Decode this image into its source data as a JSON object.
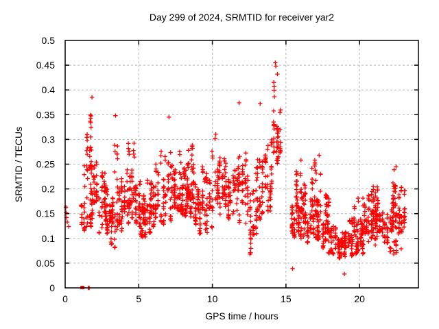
{
  "chart_data": {
    "type": "scatter",
    "title": "Day 299 of 2024, SRMTID for receiver yar2",
    "xlabel": "GPS time / hours",
    "ylabel": "SRMTID / TECUs",
    "xlim": [
      0,
      24
    ],
    "ylim": [
      0,
      0.5
    ],
    "xticks": [
      0,
      5,
      10,
      15,
      20
    ],
    "xtick_labels": [
      "0",
      "5",
      "10",
      "15",
      "20"
    ],
    "yticks": [
      0,
      0.05,
      0.1,
      0.15,
      0.2,
      0.25,
      0.3,
      0.35,
      0.4,
      0.45,
      0.5
    ],
    "ytick_labels": [
      "0",
      "0.05",
      "0.1",
      "0.15",
      "0.2",
      "0.25",
      "0.3",
      "0.35",
      "0.4",
      "0.45",
      "0.5"
    ],
    "grid": true,
    "legend": "none",
    "marker": {
      "shape": "plus",
      "size": 7,
      "color": "#ff0000"
    },
    "colors": {
      "marker": "#ff0000",
      "grid": "#b4b4b4",
      "frame": "#000000",
      "background": "#ffffff",
      "text": "#000000"
    },
    "envelope": [
      [
        1.1,
        0.1,
        0.2
      ],
      [
        1.45,
        0.11,
        0.3
      ],
      [
        1.8,
        0.12,
        0.385
      ],
      [
        2.0,
        0.12,
        0.34
      ],
      [
        2.3,
        0.11,
        0.3
      ],
      [
        2.7,
        0.1,
        0.26
      ],
      [
        3.0,
        0.085,
        0.23
      ],
      [
        3.4,
        0.075,
        0.35
      ],
      [
        3.7,
        0.09,
        0.3
      ],
      [
        4.0,
        0.11,
        0.27
      ],
      [
        4.4,
        0.12,
        0.3
      ],
      [
        4.8,
        0.13,
        0.3
      ],
      [
        5.15,
        0.1,
        0.21
      ],
      [
        5.5,
        0.09,
        0.2
      ],
      [
        5.9,
        0.1,
        0.3
      ],
      [
        6.3,
        0.11,
        0.28
      ],
      [
        6.7,
        0.12,
        0.3
      ],
      [
        7.0,
        0.13,
        0.345
      ],
      [
        7.4,
        0.14,
        0.31
      ],
      [
        7.8,
        0.15,
        0.29
      ],
      [
        8.2,
        0.14,
        0.29
      ],
      [
        8.6,
        0.13,
        0.3
      ],
      [
        9.0,
        0.11,
        0.28
      ],
      [
        9.4,
        0.09,
        0.26
      ],
      [
        9.8,
        0.1,
        0.28
      ],
      [
        10.2,
        0.13,
        0.32
      ],
      [
        10.6,
        0.14,
        0.3
      ],
      [
        11.0,
        0.13,
        0.28
      ],
      [
        11.4,
        0.12,
        0.3
      ],
      [
        11.8,
        0.13,
        0.375
      ],
      [
        12.0,
        0.13,
        0.35
      ],
      [
        12.3,
        0.1,
        0.3
      ],
      [
        12.6,
        0.065,
        0.28
      ],
      [
        12.9,
        0.1,
        0.3
      ],
      [
        13.2,
        0.13,
        0.375
      ],
      [
        13.5,
        0.14,
        0.33
      ],
      [
        13.9,
        0.15,
        0.3
      ],
      [
        14.1,
        0.17,
        0.42
      ],
      [
        14.3,
        0.18,
        0.455
      ],
      [
        14.5,
        0.2,
        0.43
      ],
      [
        14.6,
        0.21,
        0.4
      ],
      [
        14.72,
        0.25,
        0.36
      ],
      [
        15.42,
        0.1,
        0.21
      ],
      [
        15.7,
        0.1,
        0.235
      ],
      [
        16.0,
        0.1,
        0.25
      ],
      [
        16.3,
        0.09,
        0.22
      ],
      [
        16.6,
        0.09,
        0.235
      ],
      [
        16.9,
        0.1,
        0.26
      ],
      [
        17.3,
        0.09,
        0.27
      ],
      [
        17.6,
        0.07,
        0.2
      ],
      [
        18.0,
        0.07,
        0.175
      ],
      [
        18.4,
        0.062,
        0.16
      ],
      [
        18.8,
        0.055,
        0.15
      ],
      [
        19.2,
        0.06,
        0.16
      ],
      [
        19.6,
        0.065,
        0.175
      ],
      [
        20.0,
        0.07,
        0.185
      ],
      [
        20.35,
        0.065,
        0.18
      ],
      [
        20.7,
        0.07,
        0.2
      ],
      [
        21.0,
        0.08,
        0.21
      ],
      [
        21.4,
        0.09,
        0.225
      ],
      [
        21.8,
        0.08,
        0.215
      ],
      [
        22.2,
        0.07,
        0.235
      ],
      [
        22.5,
        0.065,
        0.245
      ],
      [
        22.8,
        0.07,
        0.23
      ],
      [
        23.05,
        0.1,
        0.2
      ]
    ],
    "gaps": [
      [
        14.74,
        15.4
      ]
    ],
    "singles": [
      [
        0.05,
        0.163
      ],
      [
        0.07,
        0.152
      ],
      [
        0.1,
        0.142
      ],
      [
        0.14,
        0.133
      ],
      [
        0.24,
        0.124
      ],
      [
        1.58,
        0.0
      ],
      [
        1.63,
        0.0
      ],
      [
        15.45,
        0.039
      ],
      [
        18.97,
        0.028
      ],
      [
        16.02,
        0.258
      ],
      [
        16.96,
        0.258
      ],
      [
        17.25,
        0.268
      ],
      [
        1.82,
        0.385
      ],
      [
        3.42,
        0.348
      ],
      [
        7.05,
        0.345
      ],
      [
        11.82,
        0.374
      ],
      [
        13.25,
        0.372
      ],
      [
        14.28,
        0.455
      ],
      [
        14.31,
        0.448
      ],
      [
        14.42,
        0.432
      ],
      [
        12.55,
        0.068
      ],
      [
        22.48,
        0.245
      ]
    ],
    "zero_squares": [
      [
        1.15,
        0.0
      ],
      [
        1.19,
        0.0
      ]
    ],
    "seed": 20241025,
    "burst": {
      "spacing_min": 0.055,
      "spacing_rand": 0.16,
      "pts_min": 5,
      "pts_rand": 12,
      "jitter": 0.07
    }
  }
}
